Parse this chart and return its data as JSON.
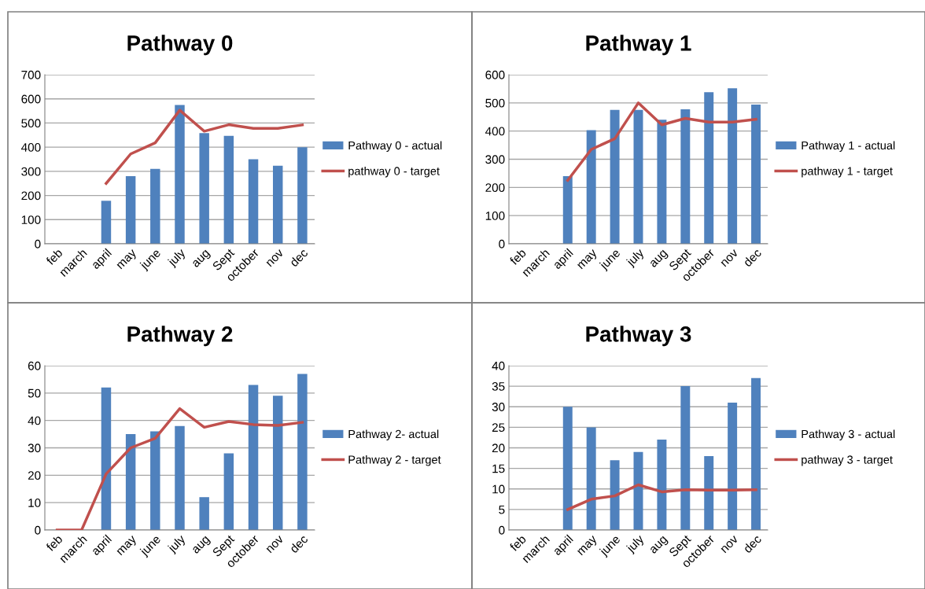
{
  "chart_data": [
    {
      "type": "bar",
      "title": "Pathway 0",
      "categories": [
        "feb",
        "march",
        "april",
        "may",
        "june",
        "july",
        "aug",
        "Sept",
        "october",
        "nov",
        "dec"
      ],
      "series": [
        {
          "name": "Pathway 0 - actual",
          "color": "#4f81bd",
          "values": [
            null,
            null,
            178,
            280,
            310,
            575,
            458,
            447,
            350,
            323,
            400
          ]
        },
        {
          "name": "pathway 0 - target",
          "type": "line",
          "color": "#c0504d",
          "values": [
            null,
            null,
            250,
            372,
            418,
            553,
            466,
            493,
            478,
            478,
            492
          ]
        }
      ],
      "ylim": [
        0,
        700
      ],
      "yticks": [
        0,
        100,
        200,
        300,
        400,
        500,
        600,
        700
      ],
      "grid": "y",
      "legend": "right",
      "marker": "none"
    },
    {
      "type": "bar",
      "title": "Pathway 1",
      "categories": [
        "feb",
        "march",
        "april",
        "may",
        "june",
        "july",
        "aug",
        "Sept",
        "october",
        "nov",
        "dec"
      ],
      "series": [
        {
          "name": "Pathway 1 - actual",
          "color": "#4f81bd",
          "values": [
            null,
            null,
            240,
            403,
            475,
            475,
            440,
            477,
            538,
            552,
            494
          ]
        },
        {
          "name": "pathway 1 - target",
          "type": "line",
          "color": "#c0504d",
          "values": [
            null,
            null,
            225,
            335,
            373,
            500,
            422,
            445,
            432,
            432,
            442
          ]
        }
      ],
      "ylim": [
        0,
        600
      ],
      "yticks": [
        0,
        100,
        200,
        300,
        400,
        500,
        600
      ],
      "grid": "y",
      "legend": "right",
      "marker": "none"
    },
    {
      "type": "bar",
      "title": "Pathway 2",
      "categories": [
        "feb",
        "march",
        "april",
        "may",
        "june",
        "july",
        "aug",
        "Sept",
        "october",
        "nov",
        "dec"
      ],
      "series": [
        {
          "name": "Pathway 2- actual",
          "color": "#4f81bd",
          "values": [
            null,
            null,
            52,
            35,
            36,
            38,
            12,
            28,
            53,
            49,
            57
          ]
        },
        {
          "name": "Pathway 2 - target",
          "type": "line",
          "color": "#c0504d",
          "values": [
            0,
            0,
            20.5,
            30,
            33.5,
            44.3,
            37.5,
            39.6,
            38.5,
            38.2,
            39.3
          ]
        }
      ],
      "ylim": [
        0,
        60
      ],
      "yticks": [
        0,
        10,
        20,
        30,
        40,
        50,
        60
      ],
      "grid": "y",
      "legend": "right",
      "marker": "none"
    },
    {
      "type": "bar",
      "title": "Pathway 3",
      "categories": [
        "feb",
        "march",
        "april",
        "may",
        "june",
        "july",
        "aug",
        "Sept",
        "october",
        "nov",
        "dec"
      ],
      "series": [
        {
          "name": "Pathway 3 - actual",
          "color": "#4f81bd",
          "values": [
            null,
            null,
            30,
            25,
            17,
            19,
            22,
            35,
            18,
            31,
            37
          ]
        },
        {
          "name": "pathway 3 - target",
          "type": "line",
          "color": "#c0504d",
          "values": [
            null,
            null,
            5,
            7.5,
            8.3,
            11,
            9.3,
            9.8,
            9.7,
            9.7,
            9.8
          ]
        }
      ],
      "ylim": [
        0,
        40
      ],
      "yticks": [
        0,
        5,
        10,
        15,
        20,
        25,
        30,
        35,
        40
      ],
      "grid": "y",
      "legend": "right",
      "marker": "none"
    }
  ]
}
